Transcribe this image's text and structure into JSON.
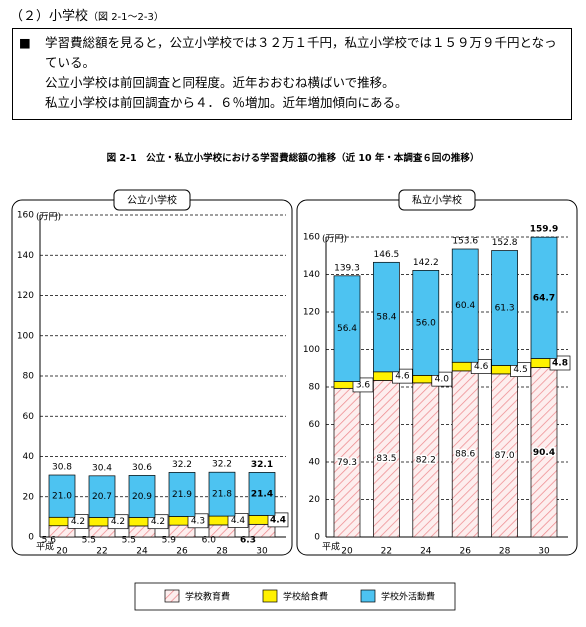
{
  "header": {
    "title": "（２）小学校",
    "ref": "（図 2-1～2-3）"
  },
  "summary": {
    "bullet": "■",
    "lines": [
      "学習費総額を見ると，公立小学校では３２万１千円，私立小学校では１５９万９千円となっている。",
      "公立小学校は前回調査と同程度。近年おおむね横ばいで推移。",
      "私立小学校は前回調査から４．６％増加。近年増加傾向にある。"
    ]
  },
  "figure_title": "図 2-1　公立・私立小学校における学習費総額の推移（近 10 年・本調査６回の推移）",
  "chart_data": [
    {
      "type": "bar",
      "stacked": true,
      "title": "公立小学校",
      "y_unit": "(万円)",
      "xlabel": "平成",
      "categories": [
        "20",
        "22",
        "24",
        "26",
        "28",
        "30"
      ],
      "ylim": [
        0,
        160
      ],
      "yticks": [
        0,
        20,
        40,
        60,
        80,
        100,
        120,
        140,
        160
      ],
      "grid": true,
      "series": [
        {
          "name": "学校教育費",
          "color": "#ee8a8e",
          "pattern": "hatch",
          "values": [
            5.6,
            5.5,
            5.5,
            5.9,
            6.0,
            6.3
          ],
          "value_labels": [
            "5.6",
            "5.5",
            "5.5",
            "5.9",
            "6.0",
            "6.3"
          ]
        },
        {
          "name": "学校給食費",
          "color": "#fff100",
          "values": [
            4.2,
            4.2,
            4.2,
            4.3,
            4.4,
            4.4
          ],
          "value_labels": [
            "4.2",
            "4.2",
            "4.2",
            "4.3",
            "4.4",
            "4.4"
          ]
        },
        {
          "name": "学校外活動費",
          "color": "#4dc3f1",
          "values": [
            21.0,
            20.7,
            20.9,
            21.9,
            21.8,
            21.4
          ],
          "value_labels": [
            "21.0",
            "20.7",
            "20.9",
            "21.9",
            "21.8",
            "21.4"
          ]
        }
      ],
      "totals": [
        30.8,
        30.4,
        30.6,
        32.2,
        32.2,
        32.1
      ]
    },
    {
      "type": "bar",
      "stacked": true,
      "title": "私立小学校",
      "y_unit": "(万円)",
      "xlabel": "平成",
      "categories": [
        "20",
        "22",
        "24",
        "26",
        "28",
        "30"
      ],
      "ylim": [
        0,
        160
      ],
      "yticks": [
        0,
        20,
        40,
        60,
        80,
        100,
        120,
        140,
        160
      ],
      "grid": true,
      "series": [
        {
          "color": "#ee8a8e",
          "pattern": "hatch",
          "values": [
            79.3,
            83.5,
            82.2,
            88.6,
            87.0,
            90.4
          ],
          "value_labels": [
            "79.3",
            "83.5",
            "82.2",
            "88.6",
            "87.0",
            "90.4"
          ]
        },
        {
          "color": "#fff100",
          "values": [
            3.6,
            4.6,
            4.0,
            4.6,
            4.5,
            4.8
          ],
          "value_labels": [
            "3.6",
            "4.6",
            "4.0",
            "4.6",
            "4.5",
            "4.8"
          ]
        },
        {
          "color": "#4dc3f1",
          "values": [
            56.4,
            58.4,
            56.0,
            60.4,
            61.3,
            64.7
          ],
          "value_labels": [
            "56.4",
            "58.4",
            "56.0",
            "60.4",
            "61.3",
            "64.7"
          ]
        }
      ],
      "totals": [
        139.3,
        146.5,
        142.2,
        153.6,
        152.8,
        159.9
      ]
    }
  ]
}
